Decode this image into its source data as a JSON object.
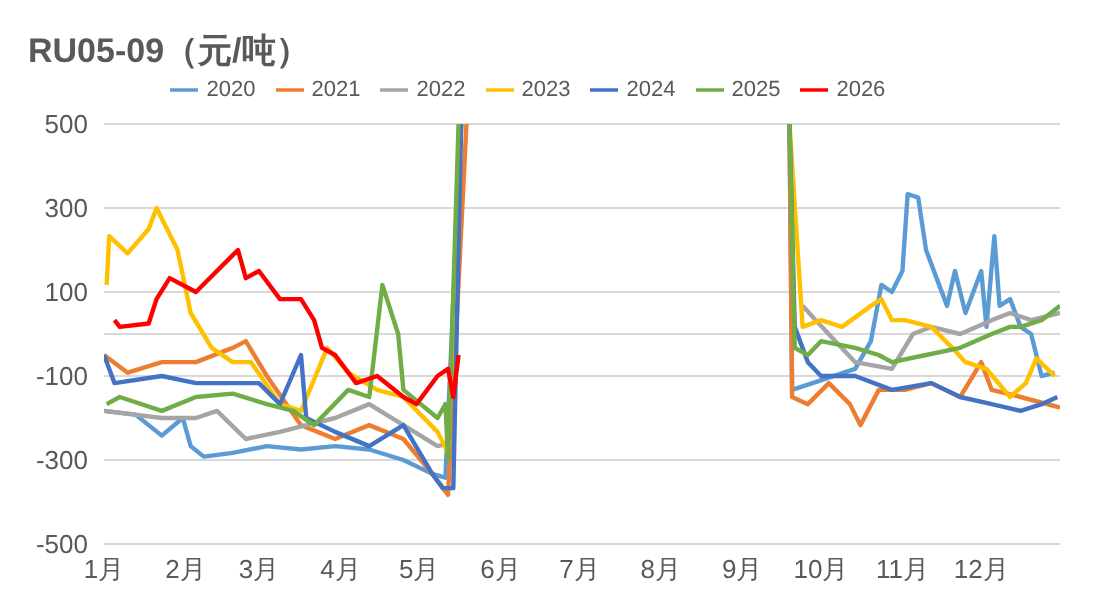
{
  "chart_data": {
    "type": "line",
    "title": "RU05-09（元/吨）",
    "xlim": [
      "--01-01",
      "--12-31"
    ],
    "xticks": [
      {
        "value": "--01-01",
        "label": "1月"
      },
      {
        "value": "--02-01",
        "label": "2月"
      },
      {
        "value": "--03-01",
        "label": "3月"
      },
      {
        "value": "--04-01",
        "label": "4月"
      },
      {
        "value": "--05-01",
        "label": "5月"
      },
      {
        "value": "--06-01",
        "label": "6月"
      },
      {
        "value": "--07-01",
        "label": "7月"
      },
      {
        "value": "--08-01",
        "label": "8月"
      },
      {
        "value": "--09-01",
        "label": "9月"
      },
      {
        "value": "--10-01",
        "label": "10月"
      },
      {
        "value": "--11-01",
        "label": "11月"
      },
      {
        "value": "--12-01",
        "label": "12月"
      }
    ],
    "ylim": [
      -500,
      500
    ],
    "yticks": [
      500,
      300,
      100,
      -100,
      -300,
      -500
    ],
    "grid": "y",
    "legend": "top",
    "marker": "none",
    "line_style": "solid",
    "ref_lines": [
      {
        "axis": "y",
        "value": 0,
        "color": "#d9d9d9"
      }
    ],
    "series": [
      {
        "name": "2020",
        "color": "#5b9bd5",
        "x": [
          "--01-01",
          "--01-13",
          "--01-23",
          "--01-31",
          "--02-03",
          "--02-08",
          "--02-19",
          "--03-04",
          "--03-17",
          "--03-30",
          "--04-12",
          "--04-25",
          "--05-06",
          "--05-11",
          "--05-17",
          "--07-19",
          "--09-19",
          "--09-20",
          "--10-14",
          "--10-20",
          "--10-24",
          "--10-28",
          "--11-01",
          "--11-03",
          "--11-07",
          "--11-10",
          "--11-14",
          "--11-18",
          "--11-21",
          "--11-25",
          "--12-01",
          "--12-03",
          "--12-06",
          "--12-08",
          "--12-12",
          "--12-16",
          "--12-20",
          "--12-24",
          "--12-29"
        ],
        "values": [
          -183,
          -192,
          -242,
          -200,
          -267,
          -292,
          -283,
          -267,
          -275,
          -267,
          -275,
          -300,
          -333,
          -342,
          500,
          null,
          500,
          -133,
          -83,
          -17,
          117,
          100,
          150,
          333,
          325,
          200,
          133,
          67,
          150,
          50,
          150,
          17,
          233,
          67,
          83,
          17,
          0,
          -100,
          -92
        ]
      },
      {
        "name": "2021",
        "color": "#ed7d31",
        "x": [
          "--01-01",
          "--01-10",
          "--01-23",
          "--02-05",
          "--02-19",
          "--02-24",
          "--03-04",
          "--03-17",
          "--03-30",
          "--04-12",
          "--04-25",
          "--05-06",
          "--05-12",
          "--05-19",
          "--07-19",
          "--09-19",
          "--09-20",
          "--09-26",
          "--10-04",
          "--10-12",
          "--10-16",
          "--10-23",
          "--11-02",
          "--11-12",
          "--11-23",
          "--12-01",
          "--12-05",
          "--12-16",
          "--12-31"
        ],
        "values": [
          -50,
          -92,
          -67,
          -67,
          -33,
          -17,
          -100,
          -217,
          -250,
          -217,
          -250,
          -333,
          -383,
          500,
          null,
          500,
          -150,
          -167,
          -117,
          -167,
          -217,
          -133,
          -133,
          -117,
          -150,
          -67,
          -133,
          -150,
          -175
        ]
      },
      {
        "name": "2022",
        "color": "#a5a5a5",
        "x": [
          "--01-01",
          "--01-23",
          "--02-05",
          "--02-13",
          "--02-24",
          "--03-09",
          "--03-19",
          "--03-30",
          "--04-12",
          "--04-25",
          "--05-08",
          "--05-14",
          "--07-19",
          "--09-24",
          "--09-29",
          "--10-14",
          "--10-28",
          "--11-05",
          "--11-12",
          "--11-23",
          "--12-05",
          "--12-12",
          "--12-20",
          "--12-31"
        ],
        "values": [
          -183,
          -200,
          -200,
          -183,
          -250,
          -233,
          -217,
          -200,
          -167,
          -217,
          -267,
          -258,
          null,
          67,
          33,
          -67,
          -83,
          0,
          17,
          0,
          33,
          50,
          33,
          50
        ]
      },
      {
        "name": "2023",
        "color": "#ffc000",
        "x": [
          "--01-02",
          "--01-03",
          "--01-10",
          "--01-18",
          "--01-21",
          "--01-29",
          "--02-03",
          "--02-11",
          "--02-19",
          "--02-26",
          "--03-09",
          "--03-17",
          "--03-27",
          "--04-04",
          "--04-15",
          "--04-25",
          "--05-08",
          "--05-12",
          "--05-17",
          "--07-19",
          "--09-19",
          "--09-24",
          "--10-01",
          "--10-09",
          "--10-20",
          "--10-24",
          "--10-28",
          "--11-02",
          "--11-12",
          "--11-20",
          "--11-25",
          "--12-03",
          "--12-12",
          "--12-18",
          "--12-22",
          "--12-29"
        ],
        "values": [
          117,
          233,
          192,
          250,
          300,
          200,
          50,
          -33,
          -67,
          -67,
          -167,
          -183,
          -33,
          -92,
          -133,
          -150,
          -233,
          -283,
          500,
          null,
          500,
          17,
          33,
          17,
          67,
          83,
          33,
          33,
          17,
          -33,
          -67,
          -83,
          -150,
          -117,
          -58,
          -100
        ]
      },
      {
        "name": "2024",
        "color": "#4472c4",
        "x": [
          "--01-01",
          "--01-05",
          "--01-23",
          "--02-05",
          "--02-16",
          "--03-01",
          "--03-09",
          "--03-17",
          "--03-19",
          "--03-30",
          "--04-12",
          "--04-25",
          "--05-06",
          "--05-10",
          "--05-14",
          "--05-17",
          "--07-19",
          "--09-19",
          "--09-21",
          "--09-26",
          "--10-01",
          "--10-14",
          "--10-28",
          "--11-12",
          "--11-23",
          "--12-05",
          "--12-16",
          "--12-24",
          "--12-30"
        ],
        "values": [
          -50,
          -117,
          -100,
          -117,
          -117,
          -117,
          -167,
          -50,
          -200,
          -233,
          -267,
          -217,
          -333,
          -367,
          -367,
          500,
          null,
          500,
          17,
          -67,
          -100,
          -100,
          -133,
          -117,
          -150,
          -167,
          -183,
          -167,
          -150
        ]
      },
      {
        "name": "2025",
        "color": "#70ad47",
        "x": [
          "--01-02",
          "--01-07",
          "--01-23",
          "--02-05",
          "--02-19",
          "--03-04",
          "--03-14",
          "--03-22",
          "--04-04",
          "--04-12",
          "--04-17",
          "--04-23",
          "--04-25",
          "--05-08",
          "--05-11",
          "--05-12",
          "--05-16",
          "--07-19",
          "--09-19",
          "--09-21",
          "--09-26",
          "--10-01",
          "--10-14",
          "--10-23",
          "--10-28",
          "--11-10",
          "--11-23",
          "--12-05",
          "--12-12",
          "--12-16",
          "--12-24",
          "--12-31"
        ],
        "values": [
          -167,
          -150,
          -183,
          -150,
          -142,
          -167,
          -183,
          -217,
          -133,
          -150,
          117,
          0,
          -133,
          -200,
          -167,
          -300,
          500,
          null,
          500,
          -33,
          -50,
          -17,
          -33,
          -50,
          -67,
          -50,
          -33,
          0,
          17,
          17,
          33,
          67
        ]
      },
      {
        "name": "2026",
        "color": "#ff0000",
        "x": [
          "--01-05",
          "--01-07",
          "--01-18",
          "--01-21",
          "--01-26",
          "--02-05",
          "--02-21",
          "--02-24",
          "--03-01",
          "--03-09",
          "--03-17",
          "--03-22",
          "--03-25",
          "--03-30",
          "--04-07",
          "--04-15",
          "--04-25",
          "--04-30",
          "--05-08",
          "--05-12",
          "--05-14",
          "--05-16"
        ],
        "values": [
          33,
          17,
          25,
          83,
          133,
          100,
          200,
          133,
          150,
          83,
          83,
          33,
          -33,
          -50,
          -117,
          -100,
          -150,
          -167,
          -100,
          -83,
          -150,
          -50
        ]
      }
    ]
  }
}
